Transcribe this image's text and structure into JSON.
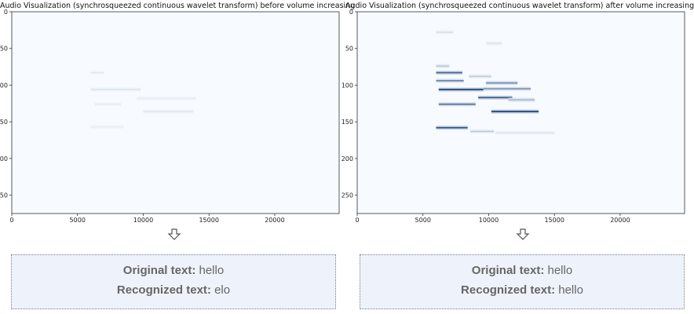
{
  "chart_data": [
    {
      "type": "heatmap",
      "title": "Audio Visualization (synchrosqueezed continuous wavelet transform) before volume increasing",
      "xlabel": "",
      "ylabel": "",
      "xlim": [
        0,
        24900
      ],
      "ylim": [
        275,
        0
      ],
      "x_ticks": [
        "0",
        "5000",
        "10000",
        "15000",
        "20000"
      ],
      "x_tick_values": [
        0,
        5000,
        10000,
        15000,
        20000
      ],
      "y_ticks": [
        "0",
        "50",
        "100",
        "150",
        "200",
        "250"
      ],
      "y_tick_values": [
        0,
        50,
        100,
        150,
        200,
        250
      ],
      "colormap": "Blues",
      "background_color": "#f7fbff",
      "streaks": [
        {
          "x0": 6000,
          "x1": 7000,
          "y": 83,
          "intensity": 0.12
        },
        {
          "x0": 6000,
          "x1": 9800,
          "y": 106,
          "intensity": 0.16
        },
        {
          "x0": 9500,
          "x1": 14000,
          "y": 118,
          "intensity": 0.1
        },
        {
          "x0": 6300,
          "x1": 8300,
          "y": 126,
          "intensity": 0.1
        },
        {
          "x0": 10000,
          "x1": 13800,
          "y": 136,
          "intensity": 0.14
        },
        {
          "x0": 6000,
          "x1": 8500,
          "y": 157,
          "intensity": 0.1
        }
      ]
    },
    {
      "type": "heatmap",
      "title": "Audio Visualization (synchrosqueezed continuous wavelet transform) after volume increasing",
      "xlabel": "",
      "ylabel": "",
      "xlim": [
        0,
        24900
      ],
      "ylim": [
        275,
        0
      ],
      "x_ticks": [
        "0",
        "5000",
        "10000",
        "15000",
        "20000"
      ],
      "x_tick_values": [
        0,
        5000,
        10000,
        15000,
        20000
      ],
      "y_ticks": [
        "0",
        "50",
        "100",
        "150",
        "200",
        "250"
      ],
      "y_tick_values": [
        0,
        50,
        100,
        150,
        200,
        250
      ],
      "colormap": "Blues",
      "background_color": "#f7fbff",
      "streaks": [
        {
          "x0": 6000,
          "x1": 7300,
          "y": 28,
          "intensity": 0.18
        },
        {
          "x0": 9800,
          "x1": 11000,
          "y": 43,
          "intensity": 0.15
        },
        {
          "x0": 6000,
          "x1": 7000,
          "y": 74,
          "intensity": 0.35
        },
        {
          "x0": 6000,
          "x1": 8000,
          "y": 83,
          "intensity": 0.75
        },
        {
          "x0": 8500,
          "x1": 10200,
          "y": 88,
          "intensity": 0.3
        },
        {
          "x0": 6000,
          "x1": 8100,
          "y": 94,
          "intensity": 0.6
        },
        {
          "x0": 9800,
          "x1": 12200,
          "y": 97,
          "intensity": 0.55
        },
        {
          "x0": 6200,
          "x1": 9600,
          "y": 106,
          "intensity": 0.95
        },
        {
          "x0": 9600,
          "x1": 13200,
          "y": 105,
          "intensity": 0.55
        },
        {
          "x0": 9200,
          "x1": 11800,
          "y": 117,
          "intensity": 0.8
        },
        {
          "x0": 11500,
          "x1": 13500,
          "y": 120,
          "intensity": 0.45
        },
        {
          "x0": 6200,
          "x1": 9000,
          "y": 126,
          "intensity": 0.7
        },
        {
          "x0": 10200,
          "x1": 13800,
          "y": 136,
          "intensity": 0.95
        },
        {
          "x0": 6000,
          "x1": 8400,
          "y": 158,
          "intensity": 0.85
        },
        {
          "x0": 8600,
          "x1": 10400,
          "y": 163,
          "intensity": 0.3
        },
        {
          "x0": 10500,
          "x1": 15000,
          "y": 165,
          "intensity": 0.15
        }
      ]
    }
  ],
  "results": [
    {
      "original_label": "Original text:",
      "original_value": "hello",
      "recognized_label": "Recognized text:",
      "recognized_value": "elo"
    },
    {
      "original_label": "Original text:",
      "original_value": "hello",
      "recognized_label": "Recognized text:",
      "recognized_value": "hello"
    }
  ],
  "icons": {
    "arrow": "down-arrow-icon"
  }
}
